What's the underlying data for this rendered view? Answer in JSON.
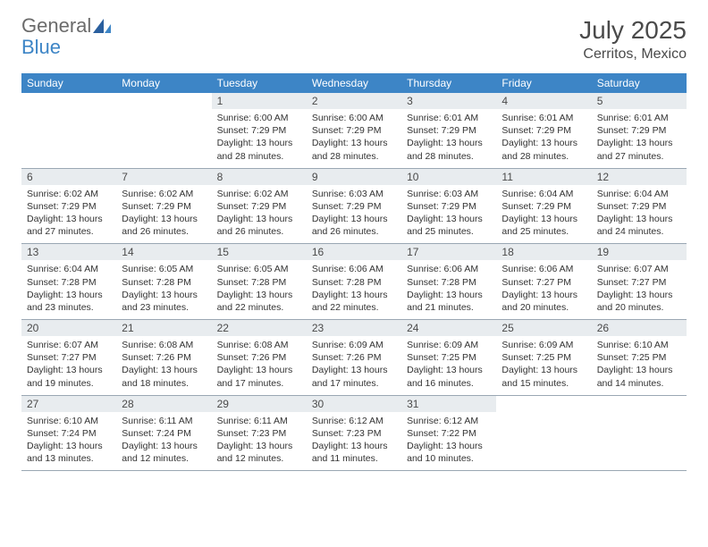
{
  "logo": {
    "part1": "General",
    "part2": "Blue"
  },
  "title": "July 2025",
  "location": "Cerritos, Mexico",
  "colors": {
    "header_bg": "#3d85c6",
    "header_text": "#ffffff",
    "daynum_bg": "#e8ecef",
    "border": "#9aa7b3",
    "text": "#333333",
    "title_text": "#4a4a4a"
  },
  "day_names": [
    "Sunday",
    "Monday",
    "Tuesday",
    "Wednesday",
    "Thursday",
    "Friday",
    "Saturday"
  ],
  "weeks": [
    [
      null,
      null,
      {
        "n": "1",
        "sr": "Sunrise: 6:00 AM",
        "ss": "Sunset: 7:29 PM",
        "dl1": "Daylight: 13 hours",
        "dl2": "and 28 minutes."
      },
      {
        "n": "2",
        "sr": "Sunrise: 6:00 AM",
        "ss": "Sunset: 7:29 PM",
        "dl1": "Daylight: 13 hours",
        "dl2": "and 28 minutes."
      },
      {
        "n": "3",
        "sr": "Sunrise: 6:01 AM",
        "ss": "Sunset: 7:29 PM",
        "dl1": "Daylight: 13 hours",
        "dl2": "and 28 minutes."
      },
      {
        "n": "4",
        "sr": "Sunrise: 6:01 AM",
        "ss": "Sunset: 7:29 PM",
        "dl1": "Daylight: 13 hours",
        "dl2": "and 28 minutes."
      },
      {
        "n": "5",
        "sr": "Sunrise: 6:01 AM",
        "ss": "Sunset: 7:29 PM",
        "dl1": "Daylight: 13 hours",
        "dl2": "and 27 minutes."
      }
    ],
    [
      {
        "n": "6",
        "sr": "Sunrise: 6:02 AM",
        "ss": "Sunset: 7:29 PM",
        "dl1": "Daylight: 13 hours",
        "dl2": "and 27 minutes."
      },
      {
        "n": "7",
        "sr": "Sunrise: 6:02 AM",
        "ss": "Sunset: 7:29 PM",
        "dl1": "Daylight: 13 hours",
        "dl2": "and 26 minutes."
      },
      {
        "n": "8",
        "sr": "Sunrise: 6:02 AM",
        "ss": "Sunset: 7:29 PM",
        "dl1": "Daylight: 13 hours",
        "dl2": "and 26 minutes."
      },
      {
        "n": "9",
        "sr": "Sunrise: 6:03 AM",
        "ss": "Sunset: 7:29 PM",
        "dl1": "Daylight: 13 hours",
        "dl2": "and 26 minutes."
      },
      {
        "n": "10",
        "sr": "Sunrise: 6:03 AM",
        "ss": "Sunset: 7:29 PM",
        "dl1": "Daylight: 13 hours",
        "dl2": "and 25 minutes."
      },
      {
        "n": "11",
        "sr": "Sunrise: 6:04 AM",
        "ss": "Sunset: 7:29 PM",
        "dl1": "Daylight: 13 hours",
        "dl2": "and 25 minutes."
      },
      {
        "n": "12",
        "sr": "Sunrise: 6:04 AM",
        "ss": "Sunset: 7:29 PM",
        "dl1": "Daylight: 13 hours",
        "dl2": "and 24 minutes."
      }
    ],
    [
      {
        "n": "13",
        "sr": "Sunrise: 6:04 AM",
        "ss": "Sunset: 7:28 PM",
        "dl1": "Daylight: 13 hours",
        "dl2": "and 23 minutes."
      },
      {
        "n": "14",
        "sr": "Sunrise: 6:05 AM",
        "ss": "Sunset: 7:28 PM",
        "dl1": "Daylight: 13 hours",
        "dl2": "and 23 minutes."
      },
      {
        "n": "15",
        "sr": "Sunrise: 6:05 AM",
        "ss": "Sunset: 7:28 PM",
        "dl1": "Daylight: 13 hours",
        "dl2": "and 22 minutes."
      },
      {
        "n": "16",
        "sr": "Sunrise: 6:06 AM",
        "ss": "Sunset: 7:28 PM",
        "dl1": "Daylight: 13 hours",
        "dl2": "and 22 minutes."
      },
      {
        "n": "17",
        "sr": "Sunrise: 6:06 AM",
        "ss": "Sunset: 7:28 PM",
        "dl1": "Daylight: 13 hours",
        "dl2": "and 21 minutes."
      },
      {
        "n": "18",
        "sr": "Sunrise: 6:06 AM",
        "ss": "Sunset: 7:27 PM",
        "dl1": "Daylight: 13 hours",
        "dl2": "and 20 minutes."
      },
      {
        "n": "19",
        "sr": "Sunrise: 6:07 AM",
        "ss": "Sunset: 7:27 PM",
        "dl1": "Daylight: 13 hours",
        "dl2": "and 20 minutes."
      }
    ],
    [
      {
        "n": "20",
        "sr": "Sunrise: 6:07 AM",
        "ss": "Sunset: 7:27 PM",
        "dl1": "Daylight: 13 hours",
        "dl2": "and 19 minutes."
      },
      {
        "n": "21",
        "sr": "Sunrise: 6:08 AM",
        "ss": "Sunset: 7:26 PM",
        "dl1": "Daylight: 13 hours",
        "dl2": "and 18 minutes."
      },
      {
        "n": "22",
        "sr": "Sunrise: 6:08 AM",
        "ss": "Sunset: 7:26 PM",
        "dl1": "Daylight: 13 hours",
        "dl2": "and 17 minutes."
      },
      {
        "n": "23",
        "sr": "Sunrise: 6:09 AM",
        "ss": "Sunset: 7:26 PM",
        "dl1": "Daylight: 13 hours",
        "dl2": "and 17 minutes."
      },
      {
        "n": "24",
        "sr": "Sunrise: 6:09 AM",
        "ss": "Sunset: 7:25 PM",
        "dl1": "Daylight: 13 hours",
        "dl2": "and 16 minutes."
      },
      {
        "n": "25",
        "sr": "Sunrise: 6:09 AM",
        "ss": "Sunset: 7:25 PM",
        "dl1": "Daylight: 13 hours",
        "dl2": "and 15 minutes."
      },
      {
        "n": "26",
        "sr": "Sunrise: 6:10 AM",
        "ss": "Sunset: 7:25 PM",
        "dl1": "Daylight: 13 hours",
        "dl2": "and 14 minutes."
      }
    ],
    [
      {
        "n": "27",
        "sr": "Sunrise: 6:10 AM",
        "ss": "Sunset: 7:24 PM",
        "dl1": "Daylight: 13 hours",
        "dl2": "and 13 minutes."
      },
      {
        "n": "28",
        "sr": "Sunrise: 6:11 AM",
        "ss": "Sunset: 7:24 PM",
        "dl1": "Daylight: 13 hours",
        "dl2": "and 12 minutes."
      },
      {
        "n": "29",
        "sr": "Sunrise: 6:11 AM",
        "ss": "Sunset: 7:23 PM",
        "dl1": "Daylight: 13 hours",
        "dl2": "and 12 minutes."
      },
      {
        "n": "30",
        "sr": "Sunrise: 6:12 AM",
        "ss": "Sunset: 7:23 PM",
        "dl1": "Daylight: 13 hours",
        "dl2": "and 11 minutes."
      },
      {
        "n": "31",
        "sr": "Sunrise: 6:12 AM",
        "ss": "Sunset: 7:22 PM",
        "dl1": "Daylight: 13 hours",
        "dl2": "and 10 minutes."
      },
      null,
      null
    ]
  ]
}
